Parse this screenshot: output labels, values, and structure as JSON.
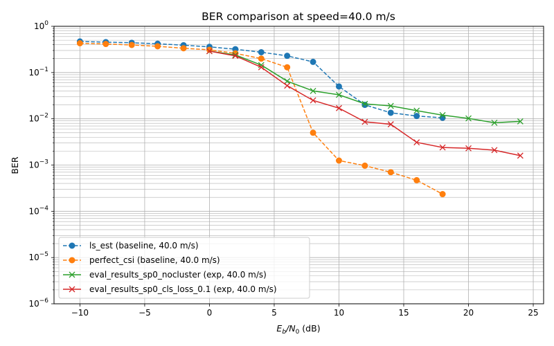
{
  "chart_data": {
    "type": "line",
    "title": "BER comparison at speed=40.0 m/s",
    "xlabel_main": "E",
    "xlabel_sub1": "b",
    "xlabel_mid": "/N",
    "xlabel_sub2": "0",
    "xlabel_unit": " (dB)",
    "ylabel": "BER",
    "xlim": [
      -12,
      25.8
    ],
    "ylim": [
      1e-06,
      1
    ],
    "yscale": "log",
    "grid": true,
    "legend_position": "lower-left",
    "x_ticks": [
      -10,
      -5,
      0,
      5,
      10,
      15,
      20,
      25
    ],
    "x_tick_labels": [
      "−10",
      "−5",
      "0",
      "5",
      "10",
      "15",
      "20",
      "25"
    ],
    "y_ticks": [
      {
        "value": 1e-06,
        "base": "10",
        "exp": "−6"
      },
      {
        "value": 1e-05,
        "base": "10",
        "exp": "−5"
      },
      {
        "value": 0.0001,
        "base": "10",
        "exp": "−4"
      },
      {
        "value": 0.001,
        "base": "10",
        "exp": "−3"
      },
      {
        "value": 0.01,
        "base": "10",
        "exp": "−2"
      },
      {
        "value": 0.1,
        "base": "10",
        "exp": "−1"
      },
      {
        "value": 1,
        "base": "10",
        "exp": "0"
      }
    ],
    "series": [
      {
        "name": "ls_est (baseline, 40.0 m/s)",
        "color": "#1f77b4",
        "style": "dashed",
        "marker": "circle",
        "x": [
          -10,
          -8,
          -6,
          -4,
          -2,
          0,
          2,
          4,
          6,
          8,
          10,
          12,
          14,
          16,
          18
        ],
        "y": [
          0.47,
          0.455,
          0.44,
          0.42,
          0.39,
          0.36,
          0.32,
          0.275,
          0.23,
          0.17,
          0.05,
          0.02,
          0.0135,
          0.0115,
          0.0105
        ]
      },
      {
        "name": "perfect_csi (baseline, 40.0 m/s)",
        "color": "#ff7f0e",
        "style": "dashed",
        "marker": "circle",
        "x": [
          -10,
          -8,
          -6,
          -4,
          -2,
          0,
          2,
          4,
          6,
          8,
          10,
          12,
          14,
          16,
          18
        ],
        "y": [
          0.43,
          0.415,
          0.395,
          0.37,
          0.335,
          0.31,
          0.26,
          0.2,
          0.13,
          0.005,
          0.00125,
          0.00097,
          0.0007,
          0.00047,
          0.000235
        ]
      },
      {
        "name": "eval_results_sp0_nocluster (exp, 40.0 m/s)",
        "color": "#2ca02c",
        "style": "solid",
        "marker": "x",
        "x": [
          0,
          2,
          4,
          6,
          8,
          10,
          12,
          14,
          16,
          18,
          20,
          22,
          24
        ],
        "y": [
          0.29,
          0.24,
          0.145,
          0.065,
          0.04,
          0.033,
          0.021,
          0.019,
          0.015,
          0.012,
          0.0102,
          0.0082,
          0.0088
        ]
      },
      {
        "name": "eval_results_sp0_cls_loss_0.1 (exp, 40.0 m/s)",
        "color": "#d62728",
        "style": "solid",
        "marker": "x",
        "x": [
          0,
          2,
          4,
          6,
          8,
          10,
          12,
          14,
          16,
          18,
          20,
          22,
          24
        ],
        "y": [
          0.29,
          0.23,
          0.13,
          0.052,
          0.025,
          0.017,
          0.0086,
          0.0076,
          0.0031,
          0.0024,
          0.0023,
          0.0021,
          0.0016
        ]
      }
    ]
  }
}
